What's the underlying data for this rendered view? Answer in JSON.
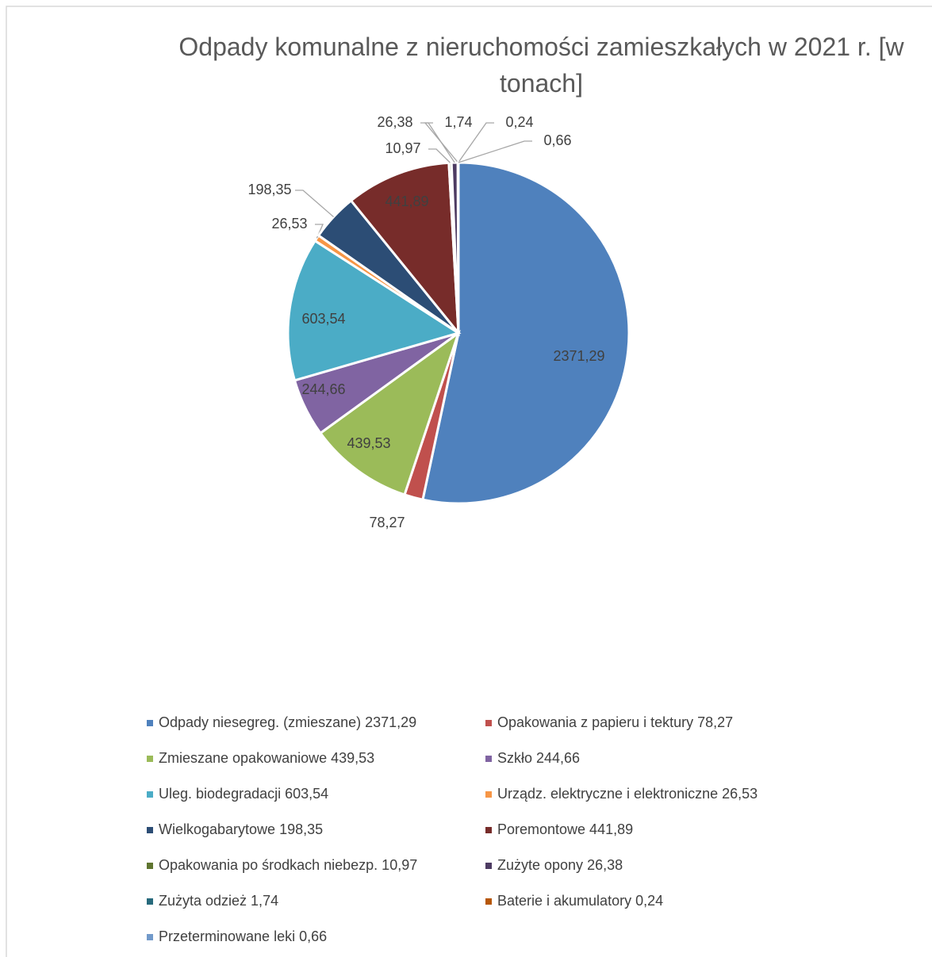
{
  "chart_data": {
    "type": "pie",
    "title": "Odpady komunalne z nieruchomości zamieszkałych w 2021 r. [w tonach]",
    "categories": [
      "Odpady niesegreg. (zmieszane) 2371,29",
      "Opakowania z papieru i tektury  78,27",
      "Zmieszane opakowaniowe  439,53",
      "Szkło  244,66",
      "Uleg. biodegradacji  603,54",
      "Urządz. elektryczne i elektroniczne 26,53",
      "Wielkogabarytowe 198,35",
      "Poremontowe  441,89",
      "Opakowania po środkach niebezp. 10,97",
      "Zużyte opony  26,38",
      "Zużyta odzież  1,74",
      "Baterie i akumulatory  0,24",
      "Przeterminowane leki  0,66"
    ],
    "values": [
      2371.29,
      78.27,
      439.53,
      244.66,
      603.54,
      26.53,
      198.35,
      441.89,
      10.97,
      26.38,
      1.74,
      0.24,
      0.66
    ],
    "value_labels": [
      "2371,29",
      "78,27",
      "439,53",
      "244,66",
      "603,54",
      "26,53",
      "198,35",
      "441,89",
      "10,97",
      "26,38",
      "1,74",
      "0,24",
      "0,66"
    ],
    "colors": [
      "#4f81bd",
      "#c0504d",
      "#9bbb59",
      "#8064a2",
      "#4bacc6",
      "#f79646",
      "#2c4d75",
      "#772c2a",
      "#5f7530",
      "#4d3b62",
      "#276a7c",
      "#b65708",
      "#729aca"
    ],
    "legend": "bottom"
  }
}
